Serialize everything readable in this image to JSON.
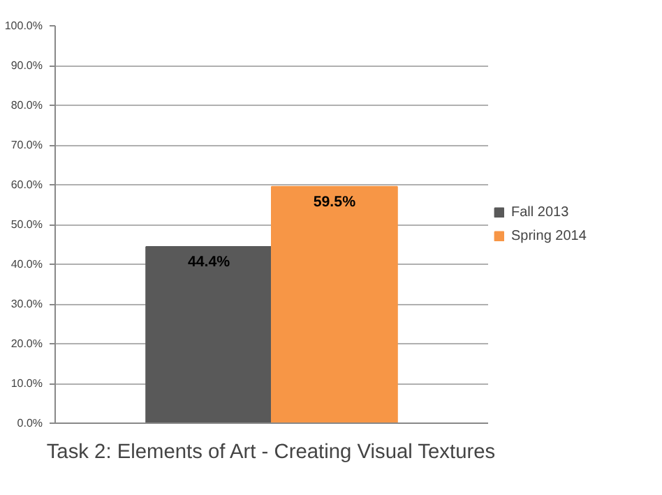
{
  "chart_data": {
    "type": "bar",
    "title": "Task 2: Elements of Art - Creating Visual Textures",
    "categories": [
      null
    ],
    "series": [
      {
        "name": "Fall 2013",
        "color": "#595959",
        "values": [
          44.4
        ],
        "value_labels": [
          "44.4%"
        ]
      },
      {
        "name": "Spring 2014",
        "color": "#f79646",
        "values": [
          59.5
        ],
        "value_labels": [
          "59.5%"
        ]
      }
    ],
    "ylim": [
      0,
      100
    ],
    "yticks": [
      {
        "value": 0,
        "label": "0.0%"
      },
      {
        "value": 10,
        "label": "10.0%"
      },
      {
        "value": 20,
        "label": "20.0%"
      },
      {
        "value": 30,
        "label": "30.0%"
      },
      {
        "value": 40,
        "label": "40.0%"
      },
      {
        "value": 50,
        "label": "50.0%"
      },
      {
        "value": 60,
        "label": "60.0%"
      },
      {
        "value": 70,
        "label": "70.0%"
      },
      {
        "value": 80,
        "label": "80.0%"
      },
      {
        "value": 90,
        "label": "90.0%"
      },
      {
        "value": 100,
        "label": "100.0%"
      }
    ],
    "grid": "y",
    "legend": "right"
  }
}
